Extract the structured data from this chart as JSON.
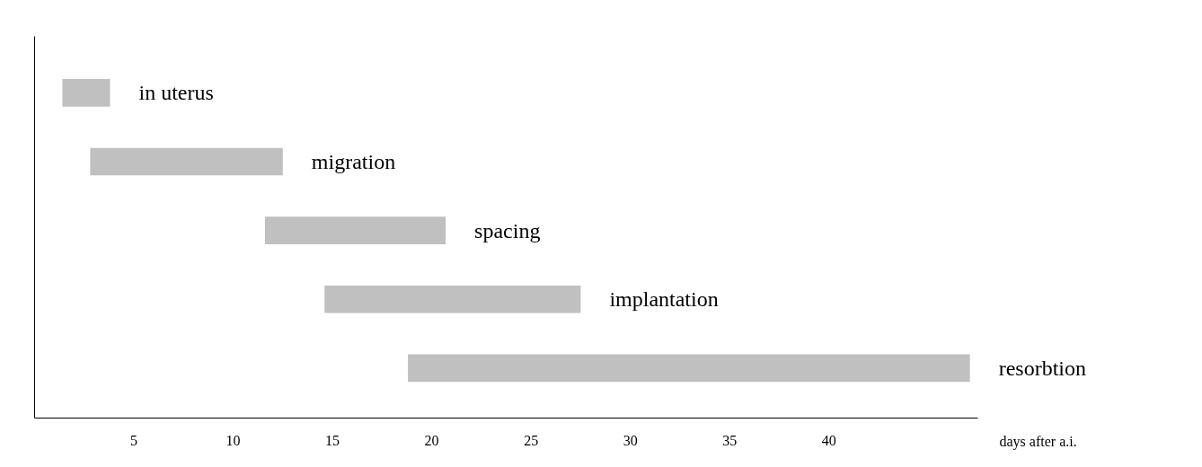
{
  "chart_data": {
    "type": "bar",
    "orientation": "horizontal",
    "xlabel": "days after a.i.",
    "categories": [
      "in uterus",
      "migration",
      "spacing",
      "implantation",
      "resorbtion"
    ],
    "base": [
      1.4,
      2.8,
      11.6,
      14.6,
      18.8
    ],
    "values": [
      2.4,
      9.7,
      9.1,
      12.9,
      28.3
    ],
    "color": "#c0c0c0",
    "xlim": [
      0,
      47.5
    ],
    "xticks": [
      5,
      10,
      15,
      20,
      25,
      30,
      35,
      40
    ],
    "tick_labels": "x",
    "grid": false
  }
}
